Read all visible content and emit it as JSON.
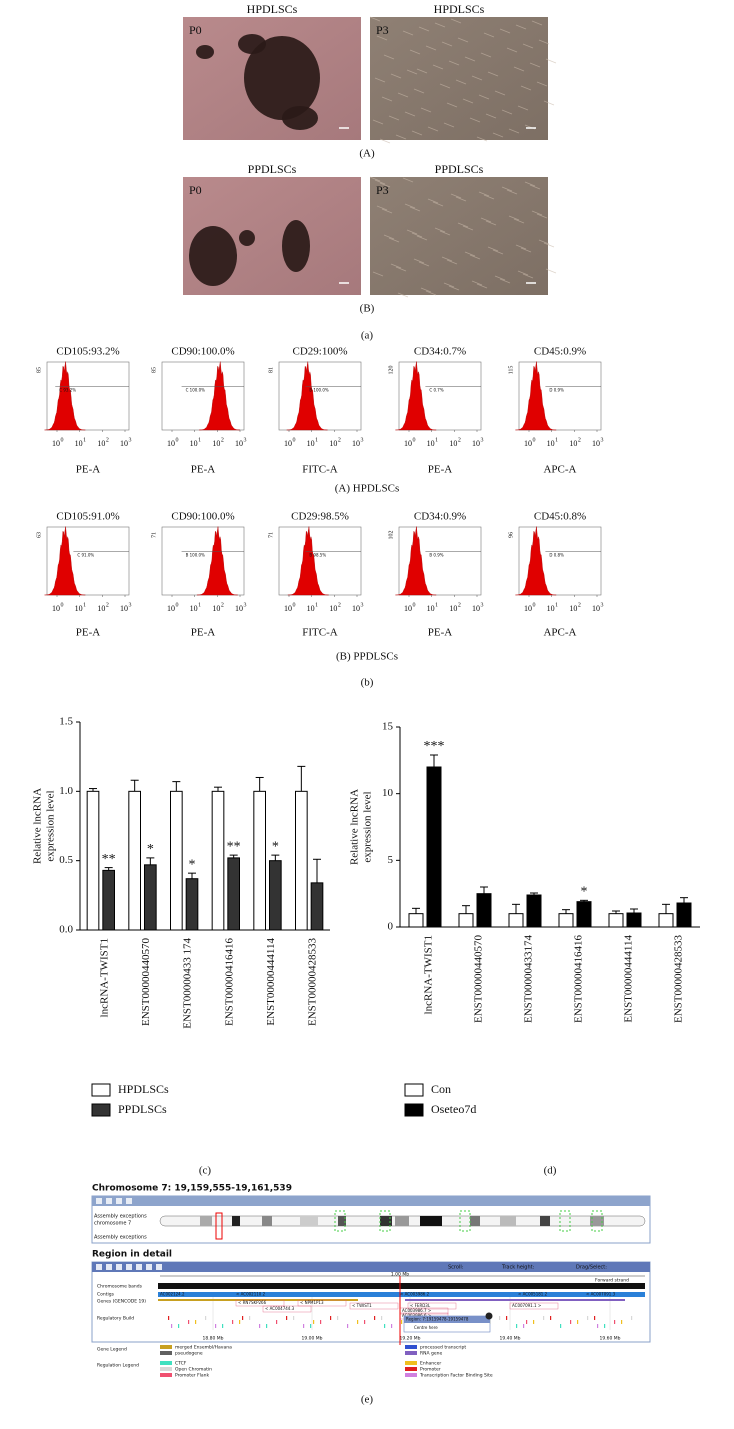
{
  "figure_a": {
    "rows": [
      {
        "panels": [
          {
            "title": "HPDLSCs",
            "passage": "P0"
          },
          {
            "title": "HPDLSCs",
            "passage": "P3"
          }
        ],
        "label": "(A)"
      },
      {
        "panels": [
          {
            "title": "PPDLSCs",
            "passage": "P0"
          },
          {
            "title": "PPDLSCs",
            "passage": "P3"
          }
        ],
        "label": "(B)"
      }
    ],
    "caption": "(a)"
  },
  "figure_b": {
    "tick_base": "10",
    "tick_exponents": [
      0,
      1,
      2,
      3
    ],
    "rows": [
      {
        "label": "(A) HPDLSCs",
        "plots": [
          {
            "title": "CD105:93.2%",
            "ymax": 85,
            "xlabel": "PE-A",
            "gate": "C 93.2%"
          },
          {
            "title": "CD90:100.0%",
            "ymax": 85,
            "xlabel": "PE-A",
            "gate": "C 100.0%"
          },
          {
            "title": "CD29:100%",
            "ymax": 81,
            "xlabel": "FITC-A",
            "gate": "B 100.0%"
          },
          {
            "title": "CD34:0.7%",
            "ymax": 120,
            "xlabel": "PE-A",
            "gate": "C 0.7%"
          },
          {
            "title": "CD45:0.9%",
            "ymax": 115,
            "xlabel": "APC-A",
            "gate": "D 0.9%"
          }
        ]
      },
      {
        "label": "(B) PPDLSCs",
        "plots": [
          {
            "title": "CD105:91.0%",
            "ymax": 63,
            "xlabel": "PE-A",
            "gate": "C 91.0%"
          },
          {
            "title": "CD90:100.0%",
            "ymax": 71,
            "xlabel": "PE-A",
            "gate": "B 100.0%"
          },
          {
            "title": "CD29:98.5%",
            "ymax": 71,
            "xlabel": "FITC-A",
            "gate": "B 98.5%"
          },
          {
            "title": "CD34:0.9%",
            "ymax": 102,
            "xlabel": "PE-A",
            "gate": "B 0.9%"
          },
          {
            "title": "CD45:0.8%",
            "ymax": 96,
            "xlabel": "APC-A",
            "gate": "D 0.8%"
          }
        ]
      }
    ],
    "caption": "(b)"
  },
  "chart_data": [
    {
      "type": "bar",
      "caption": "(c)",
      "y_label": [
        "Relative lncRNA",
        "expression level"
      ],
      "categories": [
        "lncRNA-TWIST1",
        "ENST00000440570",
        "ENST00000433 174",
        "ENST00000416416",
        "ENST00000444114",
        "ENST00000428533"
      ],
      "series": [
        {
          "name": "HPDLSCs",
          "color": "#ffffff",
          "values": [
            1.0,
            1.0,
            1.0,
            1.0,
            1.0,
            1.0
          ],
          "errors": [
            0.02,
            0.08,
            0.07,
            0.03,
            0.1,
            0.18
          ],
          "annotations": [
            null,
            null,
            null,
            null,
            null,
            null
          ]
        },
        {
          "name": "PPDLSCs",
          "color": "#333333",
          "values": [
            0.43,
            0.47,
            0.37,
            0.52,
            0.5,
            0.34
          ],
          "errors": [
            0.02,
            0.05,
            0.04,
            0.02,
            0.04,
            0.17
          ],
          "annotations": [
            "**",
            "*",
            "*",
            "**",
            "*",
            null
          ]
        }
      ],
      "ylim": [
        0,
        1.5
      ],
      "yticks": [
        {
          "value": 0,
          "label": "0.0"
        },
        0.5,
        {
          "value": 1,
          "label": "1.0"
        },
        1.5
      ],
      "legend": "bottom-left"
    },
    {
      "type": "bar",
      "caption": "(d)",
      "y_label": [
        "Relative lncRNA",
        "expression level"
      ],
      "categories": [
        "lncRNA-TWIST1",
        "ENST00000440570",
        "ENST00000433174",
        "ENST00000416416",
        "ENST00000444114",
        "ENST00000428533"
      ],
      "series": [
        {
          "name": "Con",
          "color": "#ffffff",
          "values": [
            1,
            1,
            1,
            1,
            1,
            1
          ],
          "errors": [
            0.4,
            0.6,
            0.7,
            0.3,
            0.2,
            0.7
          ],
          "annotations": [
            null,
            null,
            null,
            null,
            null,
            null
          ]
        },
        {
          "name": "Oseteo7d",
          "color": "#000000",
          "values": [
            12,
            2.5,
            2.4,
            1.9,
            1.05,
            1.8
          ],
          "errors": [
            0.9,
            0.5,
            0.15,
            0.1,
            0.3,
            0.4
          ],
          "annotations": [
            "***",
            null,
            null,
            "*",
            null,
            null
          ]
        }
      ],
      "ylim": [
        0,
        15
      ],
      "yticks": [
        0,
        5,
        10,
        15
      ],
      "legend": "bottom-left"
    }
  ],
  "figure_e": {
    "title": "Chromosome 7: 19,159,555-19,161,539",
    "overview_labels": [
      "Assembly exceptions",
      "chromosome 7"
    ],
    "overview_link": "Assembly exceptions",
    "detail_title": "Region in detail",
    "toolbar": [
      "Scroll:",
      "Track height:",
      "Drag/Select:"
    ],
    "scale": "1.00 Mb",
    "strand": "Forward strand",
    "tracks": [
      "Chromosome bands",
      "Contigs",
      "Genes (GENCODE 19)",
      "Regulatory Build"
    ],
    "band": "p21.1",
    "mb_ticks": [
      "18.80 Mb",
      "19.00 Mb",
      "19.20 Mb",
      "19.40 Mb",
      "19.60 Mb"
    ],
    "contigs": [
      "AC002124.2",
      "< AC002110.2",
      "< AC003986.2",
      "< AC005181.2",
      "< AC007091.3"
    ],
    "genes": [
      "< RN7SKP266",
      "< NPM1P13",
      "< AC004744.3",
      "< TWIST1",
      "< FERD3L",
      "AC003986.7 >",
      "AC003986.6 >",
      "AC007091.1 >"
    ],
    "popup": [
      "Region: 7:19159478-19159478",
      "Centre here"
    ],
    "gene_legend": {
      "title": "Gene Legend",
      "items": [
        {
          "name": "merged Ensembl/Havana",
          "color": "#c8a020"
        },
        {
          "name": "processed transcript",
          "color": "#3050d0"
        },
        {
          "name": "pseudogene",
          "color": "#606060"
        },
        {
          "name": "RNA gene",
          "color": "#8060c0"
        }
      ]
    },
    "regulation_legend": {
      "title": "Regulation Legend",
      "items": [
        {
          "name": "CTCF",
          "color": "#40e0c0"
        },
        {
          "name": "Enhancer",
          "color": "#f0c020"
        },
        {
          "name": "Open Chromatin",
          "color": "#d8d8d8"
        },
        {
          "name": "Promoter",
          "color": "#e02020"
        },
        {
          "name": "Promoter Flank",
          "color": "#f05070"
        },
        {
          "name": "Transcription Factor Binding Site",
          "color": "#d080e0"
        }
      ]
    },
    "caption": "(e)"
  }
}
